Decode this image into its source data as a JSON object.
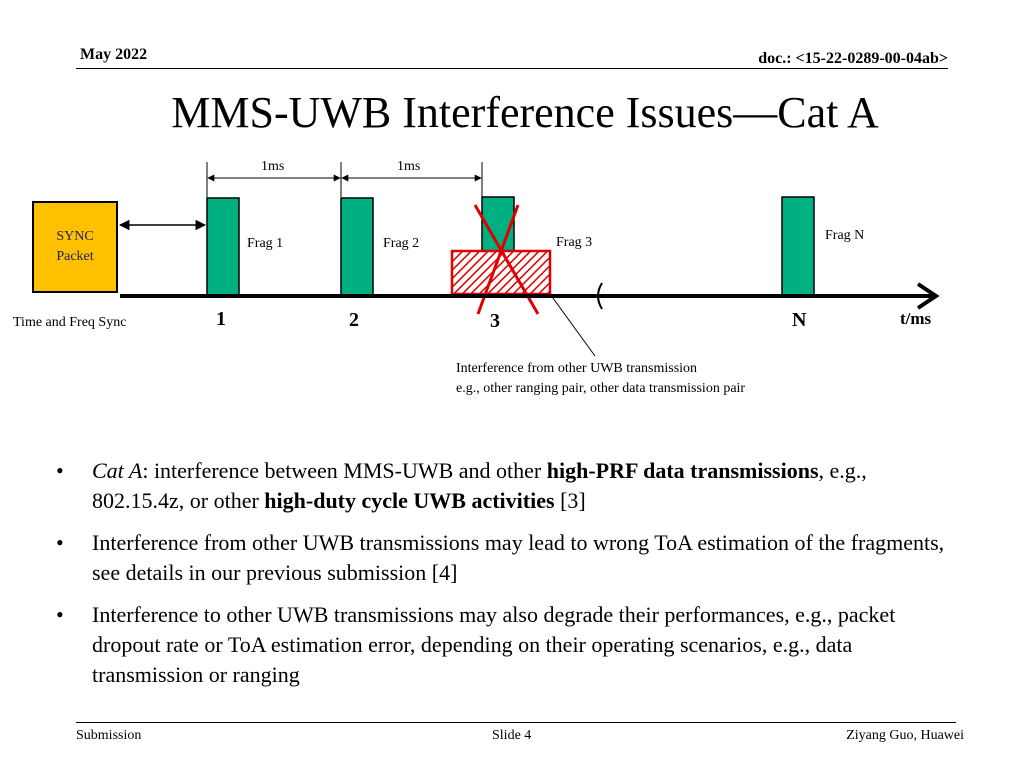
{
  "header": {
    "date": "May 2022",
    "doc": "doc.: <15-22-0289-00-04ab>"
  },
  "title": "MMS-UWB Interference Issues—Cat A",
  "diagram": {
    "interval_labels": [
      "1ms",
      "1ms"
    ],
    "sync_box": {
      "line1": "SYNC",
      "line2": "Packet"
    },
    "fragments": [
      "Frag 1",
      "Frag 2",
      "Frag 3",
      "Frag N"
    ],
    "axis_ticks": [
      "1",
      "2",
      "3",
      "N"
    ],
    "axis_label": "t/ms",
    "sync_label": "Time and Freq Sync",
    "interference_note": {
      "line1": "Interference from other UWB transmission",
      "line2": "e.g., other ranging pair, other data transmission pair"
    },
    "colors": {
      "fragment": "#00b080",
      "sync": "#ffc000",
      "interference": "#e00000",
      "axis": "#000000"
    }
  },
  "bullets": [
    {
      "term": "Cat A",
      "t1": ": interference between MMS-UWB and other ",
      "b1": "high-PRF data transmissions",
      "t2": ", e.g., 802.15.4z, or other ",
      "b2": "high-duty cycle UWB activities",
      "t3": " [3]"
    },
    {
      "text": "Interference from other UWB transmissions may lead to wrong ToA estimation of the fragments, see details in our previous submission [4]"
    },
    {
      "text": "Interference to other UWB transmissions may also degrade their performances, e.g., packet dropout rate or ToA estimation error, depending on their operating scenarios, e.g., data transmission or ranging"
    }
  ],
  "footer": {
    "left": "Submission",
    "center": "Slide 4",
    "right": "Ziyang Guo, Huawei"
  }
}
